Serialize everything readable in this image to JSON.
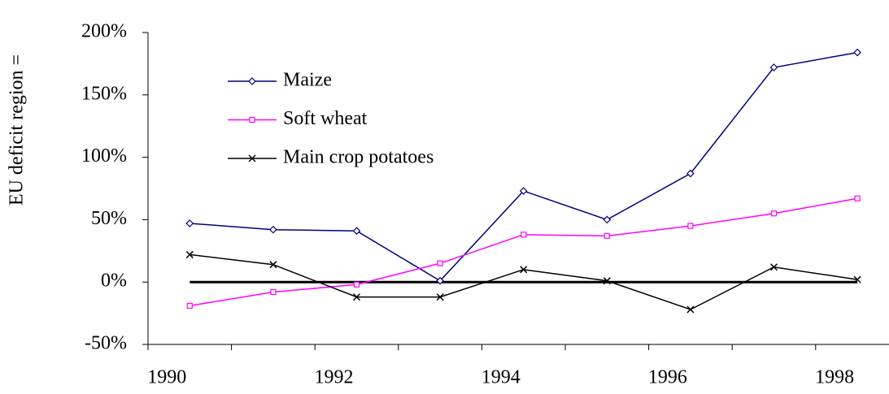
{
  "chart_data": {
    "type": "line",
    "y_label": "EU deficit region =",
    "categories": [
      "1990",
      null,
      "1992",
      null,
      "1994",
      null,
      "1996",
      null,
      "1998"
    ],
    "series": [
      {
        "name": "Maize",
        "color": "#000080",
        "marker": "diamond",
        "values": [
          47,
          42,
          41,
          1,
          73,
          50,
          87,
          172,
          184
        ]
      },
      {
        "name": "Soft wheat",
        "color": "#ff00ff",
        "marker": "square",
        "values": [
          -19,
          -8,
          -2,
          15,
          38,
          37,
          45,
          55,
          67
        ]
      },
      {
        "name": "Main crop potatoes",
        "color": "#000000",
        "marker": "x",
        "values": [
          22,
          14,
          -12,
          -12,
          10,
          1,
          -22,
          12,
          2
        ]
      }
    ],
    "ylim": [
      -50,
      200
    ],
    "yticks": [
      {
        "value": -50,
        "label": "-50%"
      },
      {
        "value": 0,
        "label": "0%"
      },
      {
        "value": 50,
        "label": "50%"
      },
      {
        "value": 100,
        "label": "100%"
      },
      {
        "value": 150,
        "label": "150%"
      },
      {
        "value": 200,
        "label": "200%"
      }
    ],
    "grid": false
  }
}
